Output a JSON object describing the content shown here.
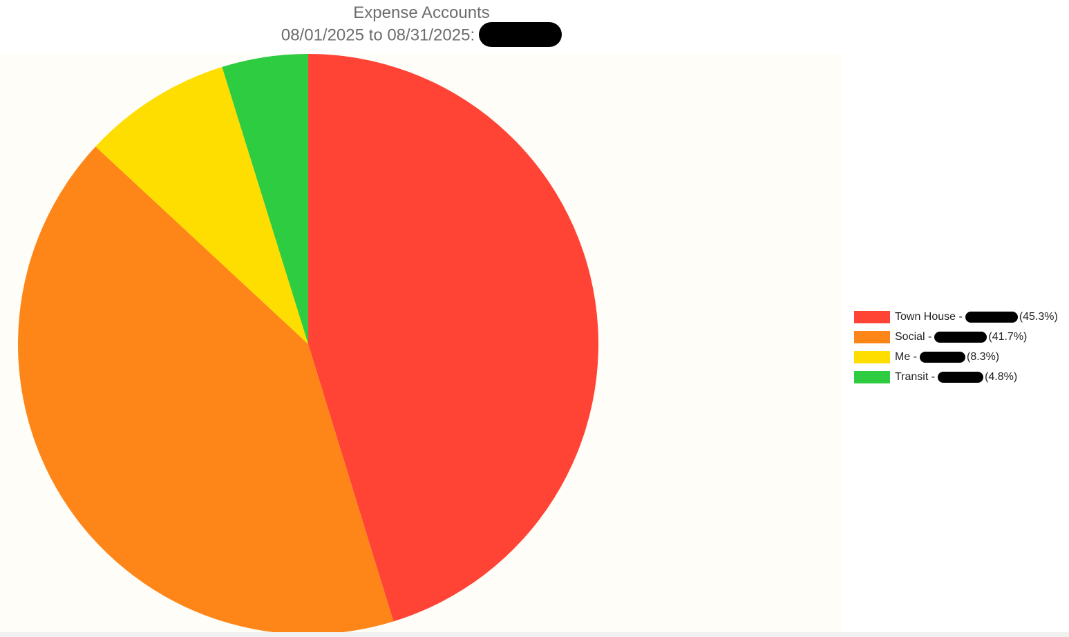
{
  "chart_data": {
    "type": "pie",
    "title": "Expense Accounts",
    "subtitle": "08/01/2025 to 08/31/2025:",
    "legend_position": "right",
    "slices": [
      {
        "label": "Town House",
        "value": 45.3,
        "percent_label": "(45.3%)",
        "color": "#ff4436"
      },
      {
        "label": "Social",
        "value": 41.7,
        "percent_label": "(41.7%)",
        "color": "#fe8619"
      },
      {
        "label": "Me",
        "value": 8.3,
        "percent_label": "(8.3%)",
        "color": "#fedd00"
      },
      {
        "label": "Transit",
        "value": 4.8,
        "percent_label": "(4.8%)",
        "color": "#2ecc40"
      }
    ]
  }
}
